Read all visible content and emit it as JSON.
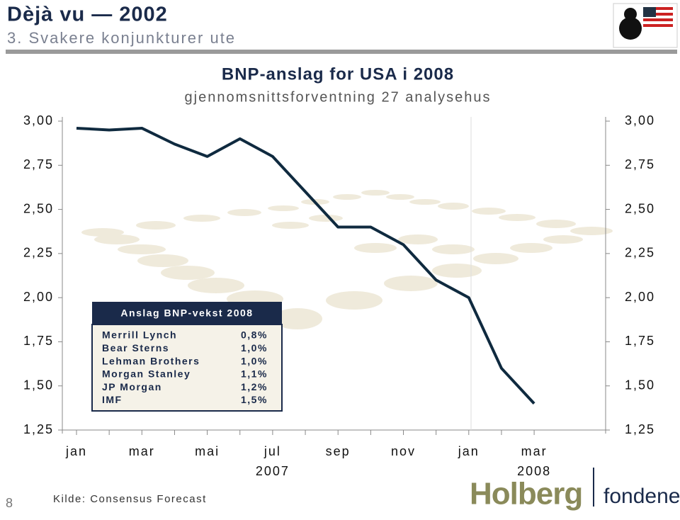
{
  "slide": {
    "title": "Dèjà vu — 2002",
    "subtitle": "3. Svakere konjunkturer ute",
    "page": "8",
    "source": "Kilde: Consensus Forecast",
    "logo": "Holberg",
    "logo_sub": "fondene"
  },
  "chart_data": {
    "type": "line",
    "title": "BNP-anslag for USA i 2008",
    "subtitle": "gjennomsnittsforventning 27 analysehus",
    "categories": [
      "jan",
      null,
      "mar",
      null,
      "mai",
      null,
      "jul",
      null,
      "sep",
      null,
      "nov",
      null,
      "jan",
      null,
      "mar"
    ],
    "years": [
      "2007",
      "2008"
    ],
    "series": [
      {
        "name": "BNP-anslag",
        "color": "#0f2a3f",
        "values": [
          2.96,
          2.95,
          2.96,
          2.87,
          2.8,
          2.9,
          2.8,
          2.6,
          2.4,
          2.4,
          2.3,
          2.1,
          2.0,
          1.6,
          1.4
        ]
      }
    ],
    "ylim": [
      1.25,
      3.0
    ],
    "yticks": [
      {
        "value": 1.25,
        "label": "1,25"
      },
      {
        "value": 1.5,
        "label": "1,50"
      },
      {
        "value": 1.75,
        "label": "1,75"
      },
      {
        "value": 2.0,
        "label": "2,00"
      },
      {
        "value": 2.25,
        "label": "2,25"
      },
      {
        "value": 2.5,
        "label": "2,50"
      },
      {
        "value": 2.75,
        "label": "2,75"
      },
      {
        "value": 3.0,
        "label": "3,00"
      }
    ],
    "inset_table": {
      "title": "Anslag BNP-vekst 2008",
      "rows": [
        [
          "Merrill Lynch",
          "0,8%"
        ],
        [
          "Bear Sterns",
          "1,0%"
        ],
        [
          "Lehman Brothers",
          "1,0%"
        ],
        [
          "Morgan Stanley",
          "1,1%"
        ],
        [
          "JP Morgan",
          "1,2%"
        ],
        [
          "IMF",
          "1,5%"
        ]
      ]
    }
  }
}
